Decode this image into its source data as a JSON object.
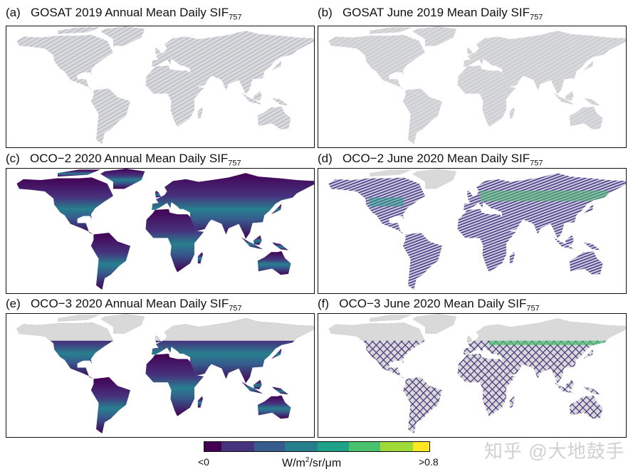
{
  "panels": [
    {
      "label": "(a)",
      "title": "GOSAT 2019 Annual Mean Daily SIF",
      "sub": "757",
      "style": "sparse"
    },
    {
      "label": "(b)",
      "title": "GOSAT June 2019 Mean Daily SIF",
      "sub": "757",
      "style": "sparse-june"
    },
    {
      "label": "(c)",
      "title": "OCO−2 2020 Annual Mean Daily SIF",
      "sub": "757",
      "style": "dense"
    },
    {
      "label": "(d)",
      "title": "OCO−2 June 2020 Mean Daily SIF",
      "sub": "757",
      "style": "stripes"
    },
    {
      "label": "(e)",
      "title": "OCO−3 2020 Annual Mean Daily SIF",
      "sub": "757",
      "style": "dense-south"
    },
    {
      "label": "(f)",
      "title": "OCO−3 June 2020 Mean Daily SIF",
      "sub": "757",
      "style": "cross"
    }
  ],
  "colorbar": {
    "min_label": "<0",
    "max_label": ">0.8",
    "unit_pre": "W/m",
    "unit_sup": "2",
    "unit_post": "/sr/μm",
    "colors": [
      "#440154",
      "#46337e",
      "#365c8d",
      "#277f8e",
      "#1fa187",
      "#4ac16d",
      "#a0da39",
      "#fde725"
    ]
  },
  "land_color": "#d9d9d9",
  "watermark": "知乎 @大地鼓手"
}
